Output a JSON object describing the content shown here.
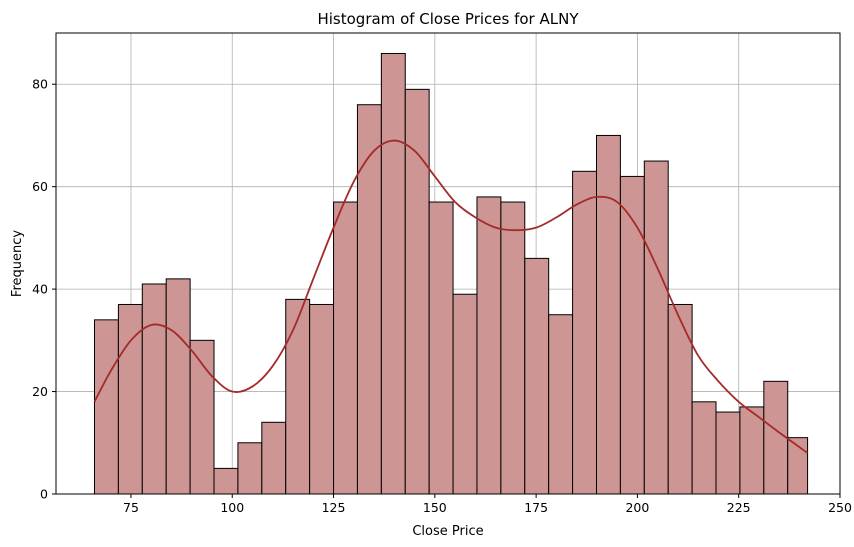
{
  "chart_data": {
    "type": "bar",
    "title": "Histogram of Close Prices for ALNY",
    "xlabel": "Close Price",
    "ylabel": "Frequency",
    "xlim": [
      56.5,
      250
    ],
    "ylim": [
      0,
      90
    ],
    "grid": true,
    "xticks": [
      75,
      100,
      125,
      150,
      175,
      200,
      225,
      250
    ],
    "yticks": [
      0,
      20,
      40,
      60,
      80
    ],
    "bin_edges": [
      66,
      71.9,
      77.8,
      83.7,
      89.6,
      95.5,
      101.4,
      107.3,
      113.2,
      119.1,
      125,
      130.9,
      136.8,
      142.7,
      148.6,
      154.5,
      160.4,
      166.3,
      172.2,
      178.1,
      184,
      189.9,
      195.8,
      201.7,
      207.6,
      213.5,
      219.4,
      225.3,
      231.2,
      237.1,
      242
    ],
    "counts": [
      34,
      37,
      41,
      42,
      30,
      5,
      10,
      14,
      38,
      37,
      57,
      76,
      86,
      79,
      57,
      39,
      58,
      57,
      46,
      35,
      63,
      70,
      62,
      65,
      37,
      18,
      16,
      17,
      22,
      11
    ],
    "bar_color": "#cd9594",
    "bar_edge_color": "#000000",
    "kde": {
      "color": "#a52a2a",
      "x": [
        66,
        70,
        75,
        80,
        85,
        90,
        95,
        100,
        105,
        110,
        115,
        120,
        125,
        130,
        135,
        140,
        145,
        150,
        155,
        160,
        165,
        170,
        175,
        180,
        185,
        190,
        195,
        200,
        205,
        210,
        215,
        220,
        225,
        230,
        235,
        242
      ],
      "y": [
        18,
        24,
        30,
        33,
        32,
        28,
        23,
        20,
        21,
        25,
        32,
        42,
        52,
        61,
        67,
        69,
        67,
        62,
        57,
        54,
        52,
        51.5,
        52,
        54,
        56.5,
        58,
        57,
        52,
        44,
        35,
        27,
        22,
        18,
        15,
        12,
        8
      ]
    }
  }
}
